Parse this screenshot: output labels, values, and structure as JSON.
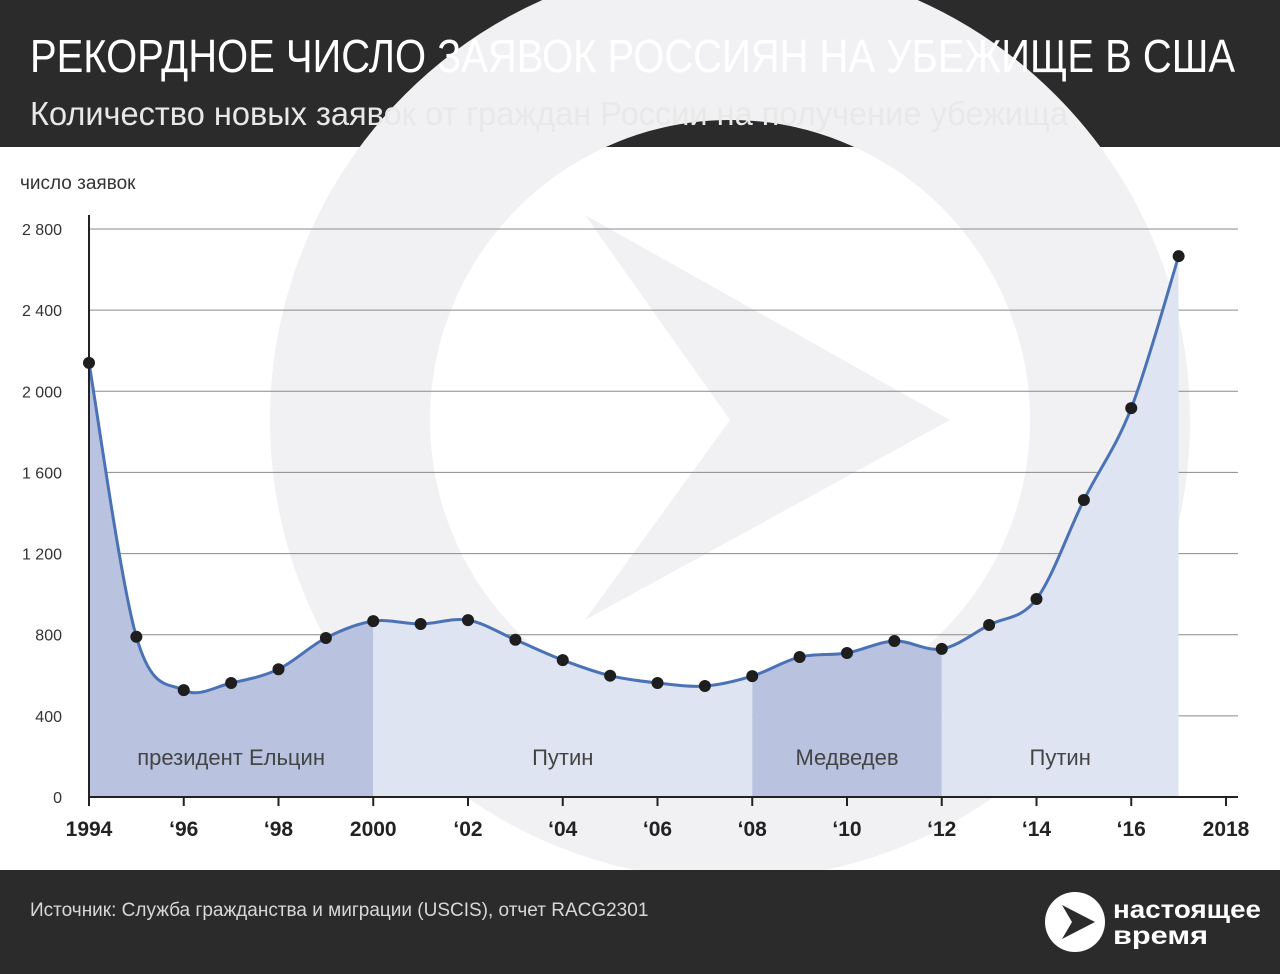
{
  "chart_data": {
    "type": "line",
    "title": "РЕКОРДНОЕ ЧИСЛО ЗАЯВОК РОССИЯН НА УБЕЖИЩЕ В США",
    "subtitle": "Количество новых заявок от граждан России на получение убежища",
    "y_label": "число заявок",
    "x": [
      1994,
      1995,
      1996,
      1997,
      1998,
      1999,
      2000,
      2001,
      2002,
      2003,
      2004,
      2005,
      2006,
      2007,
      2008,
      2009,
      2010,
      2011,
      2012,
      2013,
      2014,
      2015,
      2016,
      2017
    ],
    "series": [
      {
        "name": "заявки",
        "color": "#4a72b5",
        "values": [
          2140,
          790,
          527,
          562,
          630,
          784,
          867,
          853,
          872,
          775,
          675,
          598,
          562,
          547,
          596,
          690,
          710,
          769,
          730,
          848,
          976,
          1464,
          1917,
          2666
        ]
      }
    ],
    "xlim": [
      1994,
      2018
    ],
    "xticks": [
      {
        "value": 1994,
        "label": "1994"
      },
      {
        "value": 1996,
        "label": "‘96"
      },
      {
        "value": 1998,
        "label": "‘98"
      },
      {
        "value": 2000,
        "label": "2000"
      },
      {
        "value": 2002,
        "label": "‘02"
      },
      {
        "value": 2004,
        "label": "‘04"
      },
      {
        "value": 2006,
        "label": "‘06"
      },
      {
        "value": 2008,
        "label": "‘08"
      },
      {
        "value": 2010,
        "label": "‘10"
      },
      {
        "value": 2012,
        "label": "‘12"
      },
      {
        "value": 2014,
        "label": "‘14"
      },
      {
        "value": 2016,
        "label": "‘16"
      },
      {
        "value": 2018,
        "label": "2018"
      }
    ],
    "ylim": [
      0,
      2800
    ],
    "yticks": [
      0,
      400,
      800,
      {
        "value": 1200,
        "label": "1 200"
      },
      {
        "value": 1600,
        "label": "1 600"
      },
      {
        "value": 2000,
        "label": "2 000"
      },
      {
        "value": 2400,
        "label": "2 400"
      },
      {
        "value": 2800,
        "label": "2 800"
      }
    ],
    "grid": true,
    "periods": [
      {
        "name": "президент Ельцин",
        "start": 1994,
        "end": 2000,
        "color": "#b9c2de"
      },
      {
        "name": "Путин",
        "start": 2000,
        "end": 2008,
        "color": "#dfe4f3"
      },
      {
        "name": "Медведев",
        "start": 2008,
        "end": 2012,
        "color": "#b9c2de"
      },
      {
        "name": "Путин",
        "start": 2012,
        "end": 2017,
        "color": "#dfe4f3"
      }
    ],
    "source": "Источник: Служба гражданства и миграции (USCIS), отчет RACG2301",
    "brand": [
      "настоящее",
      "время"
    ]
  }
}
